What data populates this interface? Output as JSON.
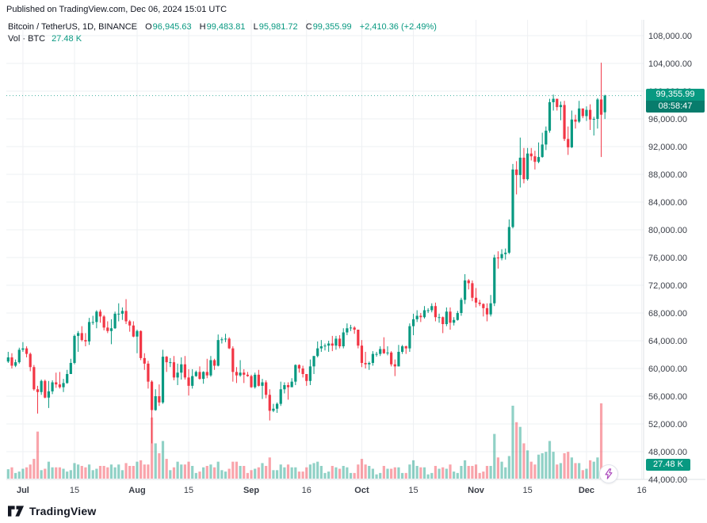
{
  "header": {
    "published": "Published on TradingView.com, Dec 06, 2024 15:01 UTC"
  },
  "legend": {
    "symbol": "Bitcoin / TetherUS, 1D, BINANCE",
    "o_label": "O",
    "o": "96,945.63",
    "h_label": "H",
    "h": "99,483.81",
    "l_label": "L",
    "l": "95,981.72",
    "c_label": "C",
    "c": "99,355.99",
    "change": "+2,410.36 (+2.49%)",
    "vol_label": "Vol · BTC",
    "vol_value": "27.48 K"
  },
  "badges": {
    "last_price": "99,355.99",
    "countdown": "08:58:47",
    "volume": "27.48 K"
  },
  "footer": {
    "brand": "TradingView"
  },
  "colors": {
    "up": "#089981",
    "down": "#f23645",
    "vol_up": "rgba(8,153,129,0.45)",
    "vol_down": "rgba(242,54,69,0.45)",
    "grid": "#eef0f3",
    "axis_border": "#dde0e6",
    "axis_text": "#3a3e47",
    "badge": "#089981",
    "badge_dark": "#077c6c",
    "flash": "#ab47bc"
  },
  "price_axis": {
    "min": 44000,
    "max": 108000,
    "step": 4000,
    "labels": [
      "108,000.00",
      "104,000.00",
      "100,000.00",
      "96,000.00",
      "92,000.00",
      "88,000.00",
      "84,000.00",
      "80,000.00",
      "76,000.00",
      "72,000.00",
      "68,000.00",
      "64,000.00",
      "60,000.00",
      "56,000.00",
      "52,000.00",
      "48,000.00",
      "44,000.00"
    ]
  },
  "time_axis": {
    "labels": [
      {
        "text": "Jul",
        "day": 4
      },
      {
        "text": "15",
        "day": 18
      },
      {
        "text": "Aug",
        "day": 35
      },
      {
        "text": "15",
        "day": 49
      },
      {
        "text": "Sep",
        "day": 66
      },
      {
        "text": "16",
        "day": 81
      },
      {
        "text": "Oct",
        "day": 96
      },
      {
        "text": "15",
        "day": 110
      },
      {
        "text": "Nov",
        "day": 127
      },
      {
        "text": "15",
        "day": 141
      },
      {
        "text": "Dec",
        "day": 157
      },
      {
        "text": "16",
        "day": 172
      }
    ]
  },
  "chart_data": {
    "type": "candlestick",
    "title": "Bitcoin / TetherUS, 1D, BINANCE",
    "interval": "1D",
    "start_date": "2024-06-27",
    "end_date": "2024-12-06",
    "price_unit": "USD thousands",
    "volume_unit": "K BTC",
    "price_range": [
      44000,
      108000
    ],
    "last_price": 99355.99,
    "last_volume": 27.48,
    "ohlc_format": "[open, high, low, close, volume]",
    "candles": [
      [
        61.0,
        62.4,
        60.8,
        61.6,
        20
      ],
      [
        61.6,
        62.2,
        60.0,
        60.4,
        24
      ],
      [
        60.4,
        61.3,
        60.2,
        60.9,
        12
      ],
      [
        60.9,
        63.0,
        60.7,
        62.7,
        15
      ],
      [
        62.7,
        63.8,
        62.4,
        62.9,
        21
      ],
      [
        62.9,
        63.2,
        61.6,
        62.1,
        24
      ],
      [
        62.1,
        62.3,
        59.6,
        60.2,
        30
      ],
      [
        60.2,
        60.5,
        56.8,
        57.0,
        42
      ],
      [
        57.0,
        57.5,
        53.5,
        56.6,
        100
      ],
      [
        56.6,
        58.4,
        56.2,
        58.2,
        18
      ],
      [
        58.2,
        58.4,
        55.7,
        55.8,
        21
      ],
      [
        55.8,
        58.2,
        54.3,
        56.7,
        36
      ],
      [
        56.7,
        58.3,
        56.3,
        58.0,
        24
      ],
      [
        58.0,
        59.4,
        57.2,
        57.7,
        24
      ],
      [
        57.7,
        59.5,
        57.1,
        57.3,
        24
      ],
      [
        57.3,
        58.5,
        56.6,
        57.9,
        21
      ],
      [
        57.9,
        59.8,
        57.8,
        59.2,
        15
      ],
      [
        59.2,
        61.4,
        59.2,
        60.8,
        18
      ],
      [
        60.8,
        64.9,
        60.6,
        64.7,
        33
      ],
      [
        64.7,
        65.4,
        62.4,
        65.1,
        30
      ],
      [
        65.1,
        66.1,
        63.9,
        64.1,
        27
      ],
      [
        64.1,
        65.1,
        63.2,
        63.9,
        24
      ],
      [
        63.9,
        67.3,
        63.4,
        66.7,
        30
      ],
      [
        66.7,
        67.6,
        66.3,
        66.7,
        18
      ],
      [
        66.7,
        68.4,
        65.8,
        68.2,
        21
      ],
      [
        68.2,
        68.5,
        66.6,
        67.5,
        27
      ],
      [
        67.5,
        67.7,
        65.5,
        65.9,
        27
      ],
      [
        65.9,
        66.8,
        65.1,
        65.4,
        24
      ],
      [
        65.4,
        67.1,
        63.5,
        65.8,
        30
      ],
      [
        65.8,
        68.2,
        65.7,
        67.9,
        24
      ],
      [
        67.9,
        69.4,
        66.8,
        67.9,
        30
      ],
      [
        67.9,
        68.8,
        67.0,
        68.3,
        18
      ],
      [
        68.3,
        70.0,
        66.4,
        66.8,
        33
      ],
      [
        66.8,
        67.0,
        65.3,
        66.2,
        27
      ],
      [
        66.2,
        66.8,
        64.5,
        64.6,
        27
      ],
      [
        64.6,
        65.6,
        62.2,
        65.4,
        36
      ],
      [
        65.4,
        65.5,
        61.2,
        61.5,
        39
      ],
      [
        61.5,
        62.2,
        59.8,
        60.7,
        30
      ],
      [
        60.7,
        61.1,
        57.1,
        58.1,
        30
      ],
      [
        58.1,
        58.3,
        49.2,
        54.0,
        130
      ],
      [
        54.0,
        57.0,
        53.9,
        56.0,
        75
      ],
      [
        56.0,
        57.7,
        54.6,
        55.1,
        54
      ],
      [
        55.1,
        62.7,
        54.9,
        61.7,
        80
      ],
      [
        61.7,
        61.8,
        59.5,
        60.9,
        42
      ],
      [
        60.9,
        61.5,
        60.2,
        60.9,
        18
      ],
      [
        60.9,
        61.8,
        58.3,
        58.7,
        24
      ],
      [
        58.7,
        60.7,
        57.6,
        59.4,
        36
      ],
      [
        59.4,
        61.6,
        58.4,
        60.6,
        30
      ],
      [
        60.6,
        61.8,
        58.4,
        58.7,
        30
      ],
      [
        58.7,
        59.9,
        56.1,
        57.5,
        36
      ],
      [
        57.5,
        59.9,
        57.1,
        58.9,
        27
      ],
      [
        58.9,
        59.7,
        58.8,
        59.5,
        12
      ],
      [
        59.5,
        60.3,
        58.4,
        58.5,
        15
      ],
      [
        58.5,
        59.6,
        57.8,
        59.5,
        24
      ],
      [
        59.5,
        61.4,
        58.6,
        59.0,
        27
      ],
      [
        59.0,
        61.8,
        58.8,
        61.2,
        30
      ],
      [
        61.2,
        61.4,
        59.8,
        60.4,
        24
      ],
      [
        60.4,
        64.9,
        60.3,
        64.1,
        36
      ],
      [
        64.1,
        64.5,
        63.6,
        64.2,
        18
      ],
      [
        64.2,
        65.0,
        63.8,
        64.3,
        15
      ],
      [
        64.3,
        64.5,
        62.8,
        62.9,
        21
      ],
      [
        62.9,
        63.2,
        58.1,
        59.5,
        36
      ],
      [
        59.5,
        60.2,
        57.9,
        59.0,
        36
      ],
      [
        59.0,
        61.2,
        58.8,
        59.4,
        27
      ],
      [
        59.4,
        59.9,
        57.9,
        59.1,
        27
      ],
      [
        59.1,
        59.5,
        58.8,
        58.9,
        12
      ],
      [
        58.9,
        59.1,
        57.2,
        57.3,
        18
      ],
      [
        57.3,
        59.4,
        57.1,
        59.1,
        21
      ],
      [
        59.1,
        59.8,
        57.4,
        57.5,
        24
      ],
      [
        57.5,
        58.5,
        55.6,
        58.0,
        33
      ],
      [
        58.0,
        58.3,
        55.7,
        56.2,
        27
      ],
      [
        56.2,
        57.0,
        52.5,
        53.9,
        45
      ],
      [
        53.9,
        54.9,
        53.7,
        54.2,
        18
      ],
      [
        54.2,
        55.1,
        53.6,
        54.9,
        18
      ],
      [
        54.9,
        58.1,
        54.6,
        57.0,
        30
      ],
      [
        57.0,
        58.0,
        56.4,
        57.6,
        24
      ],
      [
        57.6,
        58.0,
        55.5,
        57.3,
        30
      ],
      [
        57.3,
        58.6,
        57.3,
        58.1,
        24
      ],
      [
        58.1,
        60.6,
        57.6,
        60.5,
        24
      ],
      [
        60.5,
        60.6,
        59.4,
        60.0,
        15
      ],
      [
        60.0,
        60.4,
        58.7,
        59.2,
        15
      ],
      [
        59.2,
        59.2,
        57.5,
        58.2,
        24
      ],
      [
        58.2,
        61.3,
        57.6,
        60.3,
        30
      ],
      [
        60.3,
        61.8,
        59.2,
        61.8,
        33
      ],
      [
        61.8,
        63.9,
        61.6,
        62.9,
        36
      ],
      [
        62.9,
        64.1,
        62.4,
        63.2,
        27
      ],
      [
        63.2,
        63.6,
        62.6,
        63.3,
        12
      ],
      [
        63.3,
        64.0,
        62.4,
        63.6,
        15
      ],
      [
        63.6,
        64.7,
        62.5,
        63.3,
        27
      ],
      [
        63.3,
        64.7,
        62.7,
        64.3,
        24
      ],
      [
        64.3,
        64.8,
        62.9,
        63.2,
        21
      ],
      [
        63.2,
        65.8,
        62.9,
        65.2,
        27
      ],
      [
        65.2,
        66.5,
        64.8,
        65.8,
        24
      ],
      [
        65.8,
        66.3,
        65.4,
        65.9,
        12
      ],
      [
        65.9,
        66.1,
        65.0,
        65.6,
        12
      ],
      [
        65.6,
        65.6,
        62.9,
        63.3,
        30
      ],
      [
        63.3,
        64.1,
        60.2,
        60.8,
        42
      ],
      [
        60.8,
        62.4,
        60.0,
        60.6,
        30
      ],
      [
        60.6,
        61.0,
        59.8,
        60.8,
        27
      ],
      [
        60.8,
        62.5,
        60.4,
        62.1,
        21
      ],
      [
        62.1,
        62.4,
        61.7,
        62.1,
        9
      ],
      [
        62.1,
        63.2,
        61.8,
        62.8,
        12
      ],
      [
        62.8,
        64.5,
        62.1,
        62.2,
        27
      ],
      [
        62.2,
        63.2,
        61.9,
        62.3,
        21
      ],
      [
        62.3,
        62.5,
        60.3,
        60.6,
        21
      ],
      [
        60.6,
        61.3,
        58.9,
        60.3,
        24
      ],
      [
        60.3,
        63.4,
        60.3,
        62.4,
        24
      ],
      [
        62.4,
        63.4,
        62.1,
        63.2,
        12
      ],
      [
        63.2,
        63.3,
        62.1,
        62.9,
        12
      ],
      [
        62.9,
        66.5,
        62.4,
        66.1,
        30
      ],
      [
        66.1,
        67.9,
        64.8,
        67.1,
        39
      ],
      [
        67.1,
        68.4,
        66.7,
        67.6,
        27
      ],
      [
        67.6,
        68.0,
        66.7,
        67.4,
        24
      ],
      [
        67.4,
        69.0,
        67.2,
        68.4,
        24
      ],
      [
        68.4,
        68.7,
        68.0,
        68.4,
        9
      ],
      [
        68.4,
        69.4,
        68.1,
        69.0,
        12
      ],
      [
        69.0,
        69.5,
        66.8,
        67.4,
        27
      ],
      [
        67.4,
        67.9,
        66.6,
        67.4,
        21
      ],
      [
        67.4,
        67.5,
        65.1,
        66.4,
        24
      ],
      [
        66.4,
        68.8,
        66.1,
        68.2,
        21
      ],
      [
        68.2,
        68.8,
        65.6,
        66.6,
        30
      ],
      [
        66.6,
        67.4,
        66.2,
        67.0,
        15
      ],
      [
        67.0,
        68.3,
        66.9,
        68.0,
        12
      ],
      [
        68.0,
        70.2,
        67.6,
        69.9,
        27
      ],
      [
        69.9,
        73.6,
        69.3,
        72.7,
        39
      ],
      [
        72.7,
        72.9,
        71.4,
        72.3,
        27
      ],
      [
        72.3,
        72.7,
        69.7,
        70.2,
        27
      ],
      [
        70.2,
        71.6,
        68.8,
        69.5,
        30
      ],
      [
        69.5,
        69.9,
        69.0,
        69.3,
        12
      ],
      [
        69.3,
        69.4,
        67.5,
        68.7,
        15
      ],
      [
        68.7,
        69.4,
        66.8,
        67.8,
        27
      ],
      [
        67.8,
        70.6,
        67.5,
        69.4,
        27
      ],
      [
        69.4,
        76.4,
        69.0,
        76.0,
        95
      ],
      [
        76.0,
        76.9,
        74.4,
        75.9,
        45
      ],
      [
        75.9,
        77.2,
        75.6,
        76.5,
        36
      ],
      [
        76.5,
        77.3,
        75.7,
        76.7,
        24
      ],
      [
        76.7,
        81.5,
        76.5,
        80.4,
        48
      ],
      [
        80.4,
        89.5,
        80.2,
        88.7,
        155
      ],
      [
        88.7,
        89.9,
        85.1,
        87.9,
        120
      ],
      [
        87.9,
        93.3,
        86.1,
        90.4,
        110
      ],
      [
        90.4,
        91.8,
        86.7,
        87.3,
        75
      ],
      [
        87.3,
        91.8,
        87.1,
        91.0,
        60
      ],
      [
        91.0,
        91.8,
        90.0,
        90.6,
        36
      ],
      [
        90.6,
        91.4,
        88.7,
        89.8,
        30
      ],
      [
        89.8,
        92.6,
        89.6,
        90.5,
        51
      ],
      [
        90.5,
        94.0,
        90.4,
        92.3,
        54
      ],
      [
        92.3,
        94.9,
        91.5,
        94.3,
        57
      ],
      [
        94.3,
        98.9,
        94.0,
        98.4,
        80
      ],
      [
        98.4,
        99.5,
        97.2,
        98.9,
        57
      ],
      [
        98.9,
        98.9,
        97.2,
        97.7,
        30
      ],
      [
        97.7,
        98.5,
        95.8,
        98.0,
        33
      ],
      [
        98.0,
        98.6,
        92.8,
        93.1,
        54
      ],
      [
        93.1,
        94.9,
        90.8,
        91.9,
        57
      ],
      [
        91.9,
        97.2,
        91.8,
        95.9,
        45
      ],
      [
        95.9,
        96.6,
        94.6,
        95.6,
        33
      ],
      [
        95.6,
        98.6,
        95.4,
        97.5,
        33
      ],
      [
        97.5,
        97.5,
        96.1,
        96.4,
        18
      ],
      [
        96.4,
        97.8,
        95.7,
        97.3,
        21
      ],
      [
        97.3,
        98.1,
        94.4,
        95.9,
        39
      ],
      [
        95.9,
        96.3,
        93.6,
        96.0,
        36
      ],
      [
        96.0,
        99.0,
        94.6,
        98.8,
        45
      ],
      [
        98.8,
        104.1,
        90.5,
        96.6,
        160
      ],
      [
        96.95,
        99.48,
        95.98,
        99.36,
        27.48
      ]
    ]
  }
}
